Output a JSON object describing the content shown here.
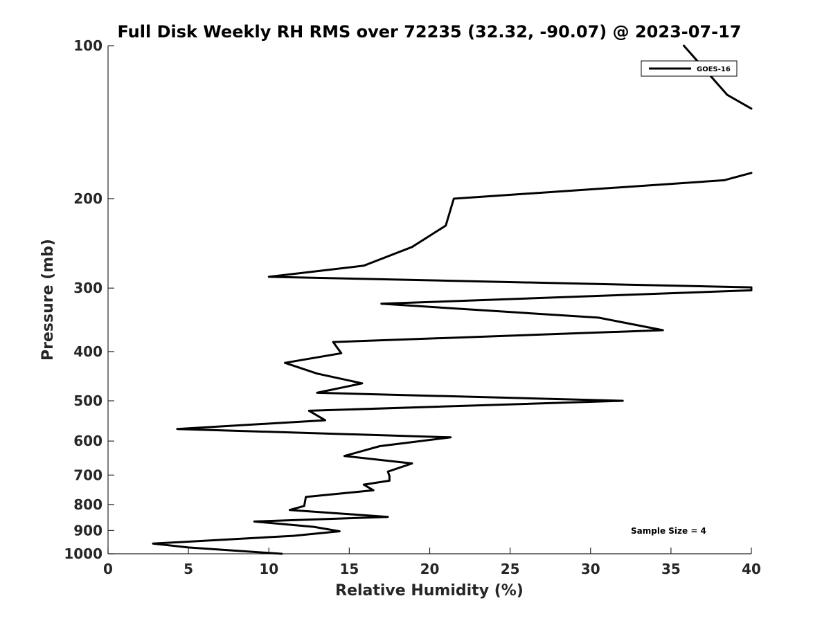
{
  "chart_data": {
    "type": "line",
    "title": "Full Disk Weekly RH RMS over 72235 (32.32, -90.07) @ 2023-07-17",
    "xlabel": "Relative Humidity (%)",
    "ylabel": "Pressure (mb)",
    "xlim": [
      0,
      40
    ],
    "ylim": [
      100,
      1000
    ],
    "yscale": "log-reversed",
    "grid": false,
    "legend_position": "top-right",
    "x_ticks": [
      0,
      5,
      10,
      15,
      20,
      25,
      30,
      35,
      40
    ],
    "y_ticks": [
      100,
      200,
      300,
      400,
      500,
      600,
      700,
      800,
      900,
      1000
    ],
    "annotation": "Sample Size = 4",
    "series": [
      {
        "name": "GOES-16",
        "color": "#000000",
        "points": [
          [
            35.8,
            100
          ],
          [
            38.5,
            125
          ],
          [
            40.0,
            133
          ],
          [
            null,
            null
          ],
          [
            40.0,
            178
          ],
          [
            38.3,
            184
          ],
          [
            21.5,
            200
          ],
          [
            21.0,
            226
          ],
          [
            18.9,
            249
          ],
          [
            15.9,
            271
          ],
          [
            10.0,
            285
          ],
          [
            40.0,
            299
          ],
          [
            40.0,
            303
          ],
          [
            17.0,
            322
          ],
          [
            30.5,
            343
          ],
          [
            34.5,
            363
          ],
          [
            14.0,
            383
          ],
          [
            14.5,
            403
          ],
          [
            11.0,
            421
          ],
          [
            13.0,
            442
          ],
          [
            15.8,
            462
          ],
          [
            13.0,
            482
          ],
          [
            32.0,
            500
          ],
          [
            12.5,
            523
          ],
          [
            13.5,
            546
          ],
          [
            4.3,
            568
          ],
          [
            21.3,
            590
          ],
          [
            16.9,
            614
          ],
          [
            14.7,
            642
          ],
          [
            18.9,
            664
          ],
          [
            17.4,
            689
          ],
          [
            17.5,
            703
          ],
          [
            17.5,
            718
          ],
          [
            15.9,
            731
          ],
          [
            16.5,
            750
          ],
          [
            12.3,
            773
          ],
          [
            12.2,
            805
          ],
          [
            11.3,
            820
          ],
          [
            17.4,
            846
          ],
          [
            9.1,
            864
          ],
          [
            12.8,
            885
          ],
          [
            14.4,
            903
          ],
          [
            11.5,
            922
          ],
          [
            2.8,
            955
          ],
          [
            5.0,
            972
          ],
          [
            10.8,
            1000
          ]
        ]
      }
    ]
  }
}
